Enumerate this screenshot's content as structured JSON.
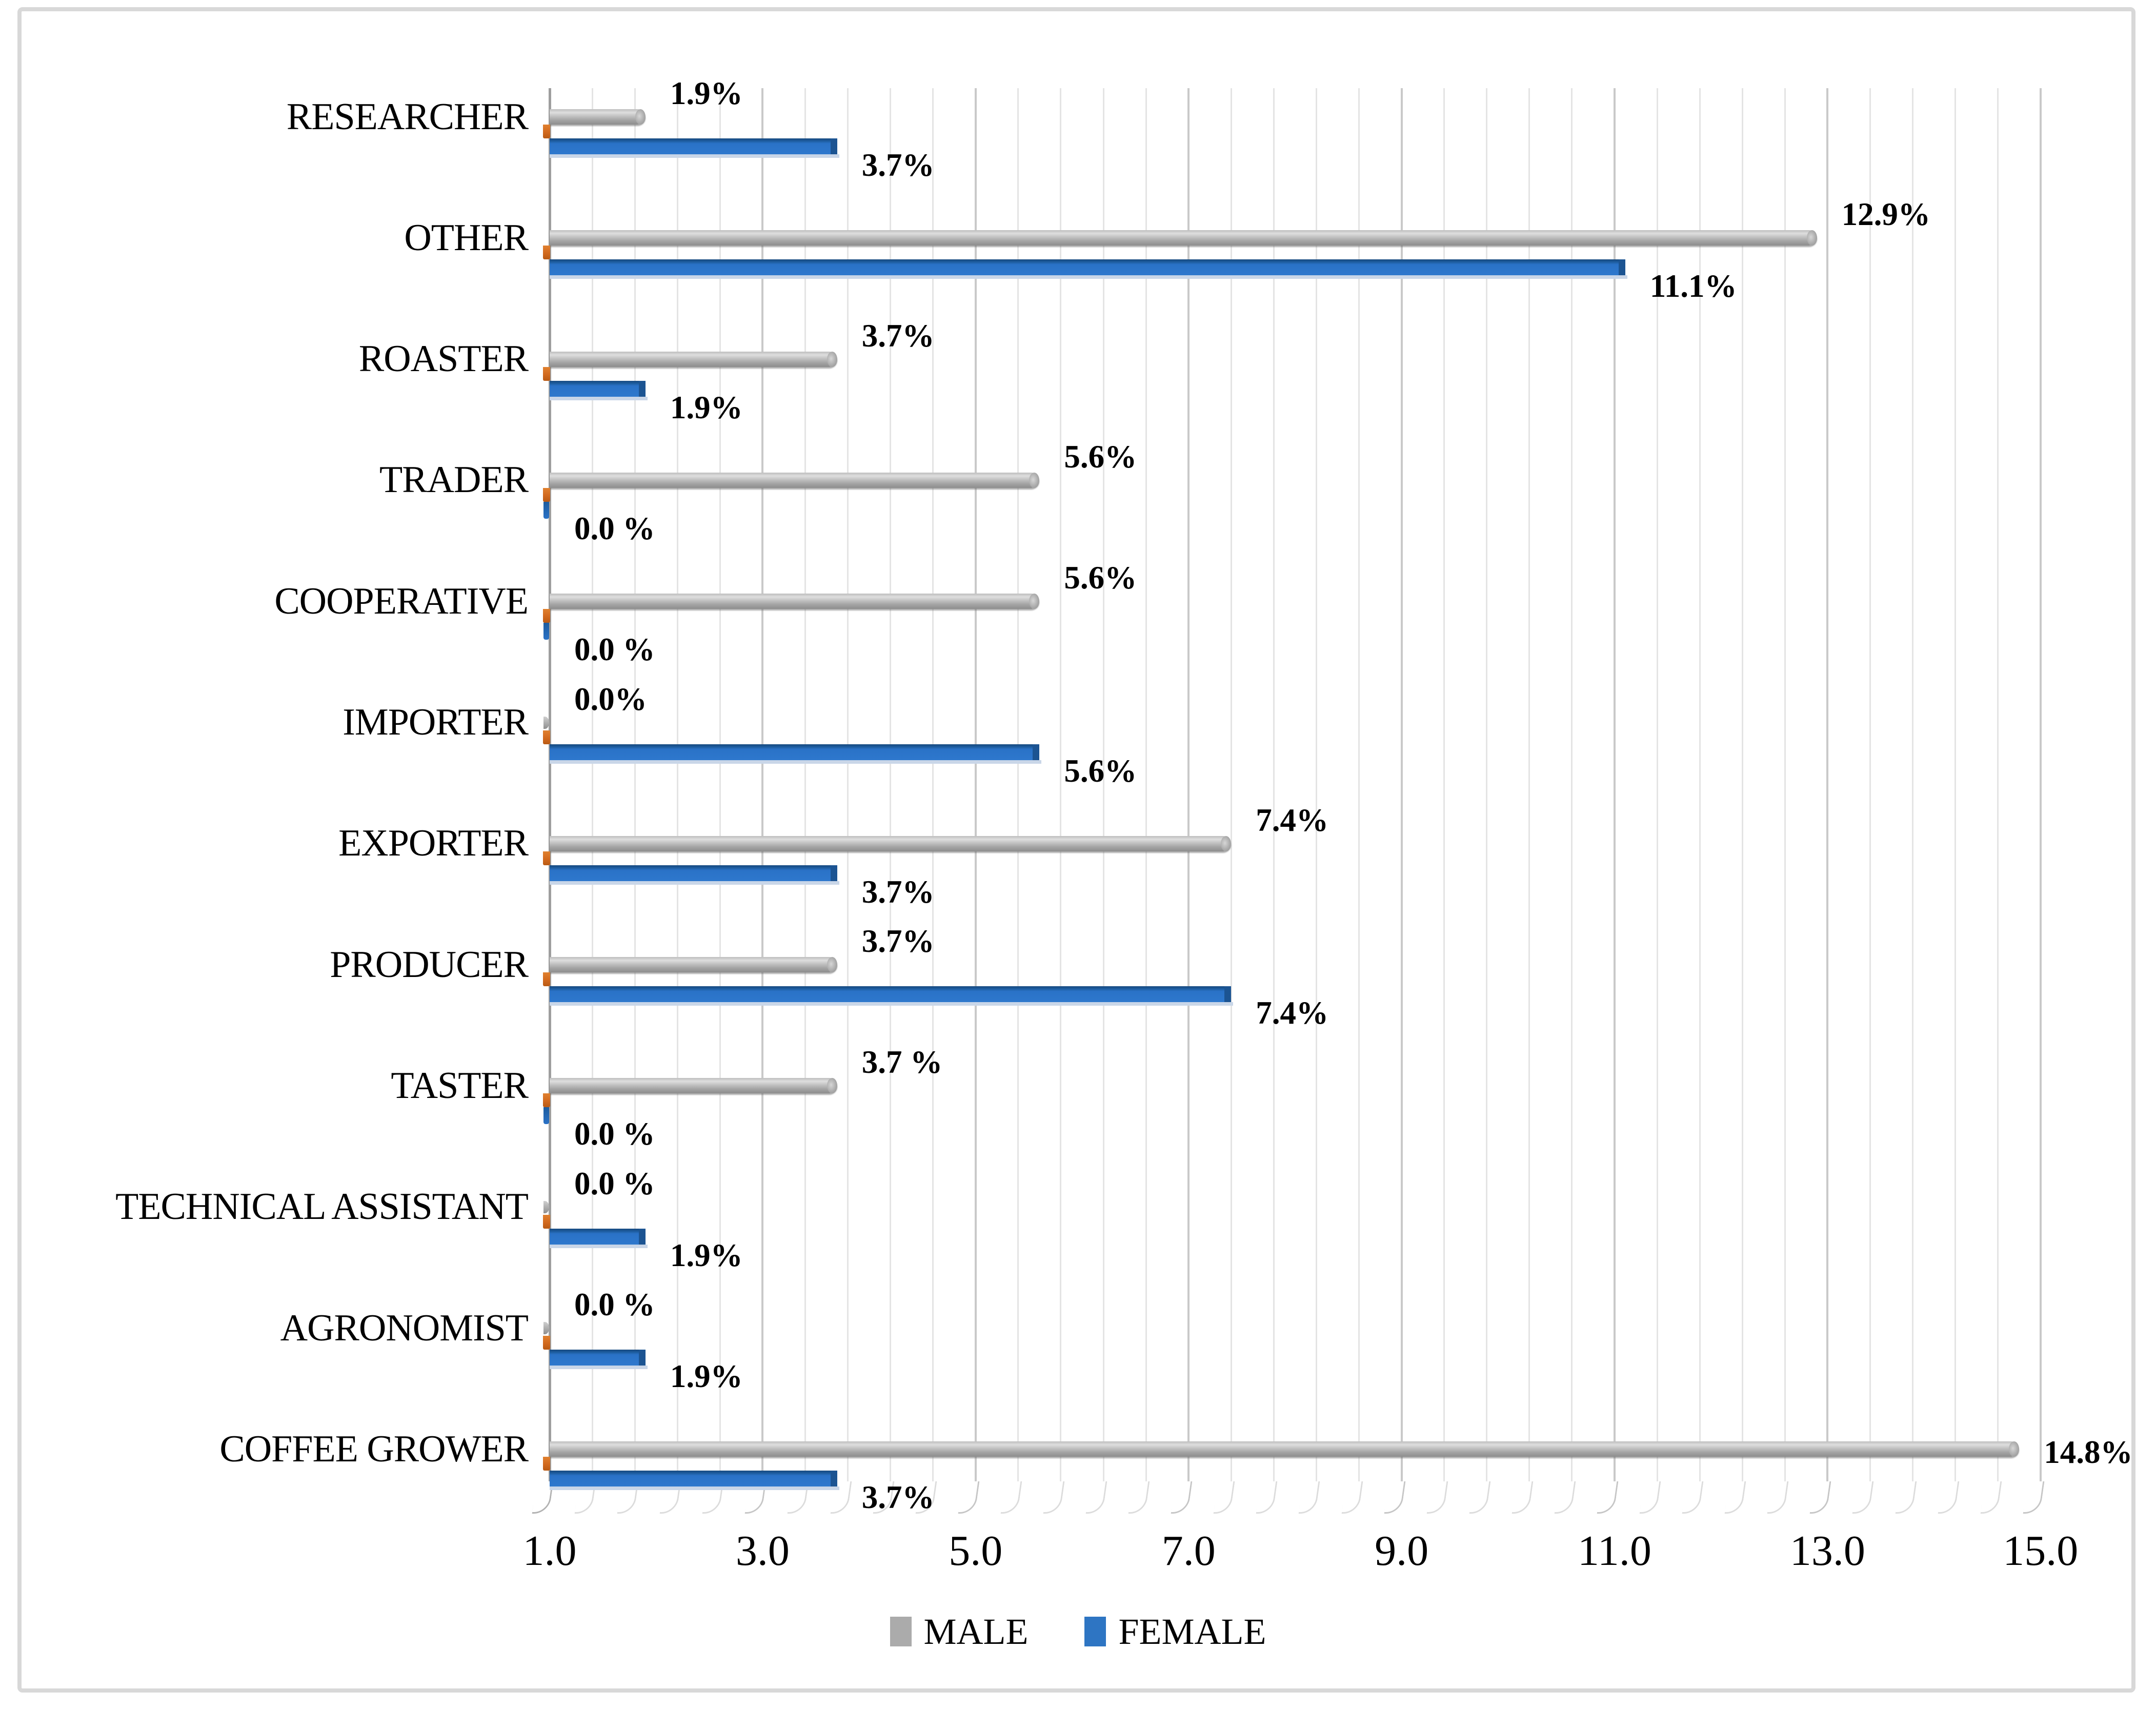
{
  "chart_data": {
    "type": "bar",
    "orientation": "horizontal",
    "title": "",
    "xlabel": "",
    "ylabel": "",
    "xlim": [
      1.0,
      15.0
    ],
    "x_major_ticks": [
      "1.0",
      "3.0",
      "5.0",
      "7.0",
      "9.0",
      "11.0",
      "13.0",
      "15.0"
    ],
    "x_minor_step": 0.4,
    "grid": "on",
    "legend_position": "bottom-center",
    "categories": [
      "RESEARCHER",
      "OTHER",
      "ROASTER",
      "TRADER",
      "COOPERATIVE",
      "IMPORTER",
      "EXPORTER",
      "PRODUCER",
      "TASTER",
      "TECHNICAL ASSISTANT",
      "AGRONOMIST",
      "COFFEE GROWER"
    ],
    "series": [
      {
        "name": "MALE",
        "color": "#ABABAB",
        "values": [
          1.9,
          12.9,
          3.7,
          5.6,
          5.6,
          0.0,
          7.4,
          3.7,
          3.7,
          0.0,
          0.0,
          14.8
        ],
        "labels": [
          "1.9%",
          "12.9%",
          "3.7%",
          "5.6%",
          "5.6%",
          "0.0%",
          "7.4%",
          "3.7%",
          "3.7 %",
          "0.0 %",
          "0.0 %",
          "14.8%"
        ]
      },
      {
        "name": "FEMALE",
        "color": "#2E75C3",
        "values": [
          3.7,
          11.1,
          1.9,
          0.0,
          0.0,
          5.6,
          3.7,
          7.4,
          0.0,
          1.9,
          1.9,
          3.7
        ],
        "labels": [
          "3.7%",
          "11.1%",
          "1.9%",
          "0.0 %",
          "0.0 %",
          "5.6%",
          "3.7%",
          "7.4%",
          "0.0 %",
          "1.9%",
          "1.9%",
          "3.7%"
        ]
      }
    ]
  },
  "colors": {
    "grid_minor": "#E4E4E4",
    "grid_major": "#C9C9C9",
    "axis_line": "#9E9E9E",
    "frame_border": "#D8D8D8",
    "male_bar": "#ABABAB",
    "female_bar": "#2E75C3",
    "orange_sliver": "#D2691E",
    "female_bar_shadow": "#C9D6E8",
    "background": "#FFFFFF"
  },
  "legend": {
    "male_label": "MALE",
    "female_label": "FEMALE"
  }
}
